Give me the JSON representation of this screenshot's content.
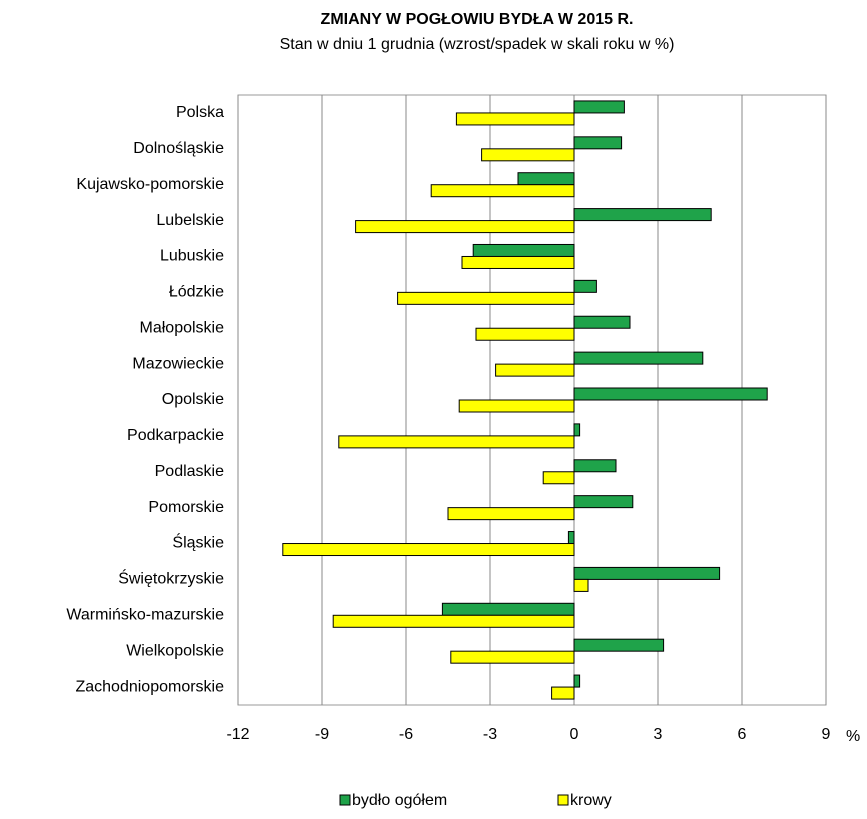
{
  "chart_data": {
    "type": "barh",
    "title": "ZMIANY W POGŁOWIU BYDŁA W 2015 R.",
    "subtitle": "Stan w dniu 1 grudnia (wzrost/spadek w skali roku w %)",
    "xlabel": "%",
    "categories": [
      "Polska",
      "Dolnośląskie",
      "Kujawsko-pomorskie",
      "Lubelskie",
      "Lubuskie",
      "Łódzkie",
      "Małopolskie",
      "Mazowieckie",
      "Opolskie",
      "Podkarpackie",
      "Podlaskie",
      "Pomorskie",
      "Śląskie",
      "Świętokrzyskie",
      "Warmińsko-mazurskie",
      "Wielkopolskie",
      "Zachodniopomorskie"
    ],
    "series": [
      {
        "name": "bydło ogółem",
        "color": "#1fa34a",
        "values": [
          1.8,
          1.7,
          -2.0,
          4.9,
          -3.6,
          0.8,
          2.0,
          4.6,
          6.9,
          0.2,
          1.5,
          2.1,
          -0.2,
          5.2,
          -4.7,
          3.2,
          0.2
        ]
      },
      {
        "name": "krowy",
        "color": "#ffff00",
        "values": [
          -4.2,
          -3.3,
          -5.1,
          -7.8,
          -4.0,
          -6.3,
          -3.5,
          -2.8,
          -4.1,
          -8.4,
          -1.1,
          -4.5,
          -10.4,
          0.5,
          -8.6,
          -4.4,
          -0.8
        ]
      }
    ],
    "xlim": [
      -12,
      9
    ],
    "xticks": [
      -12,
      -9,
      -6,
      -3,
      0,
      3,
      6,
      9
    ],
    "grid": true,
    "legend": "bottom"
  }
}
